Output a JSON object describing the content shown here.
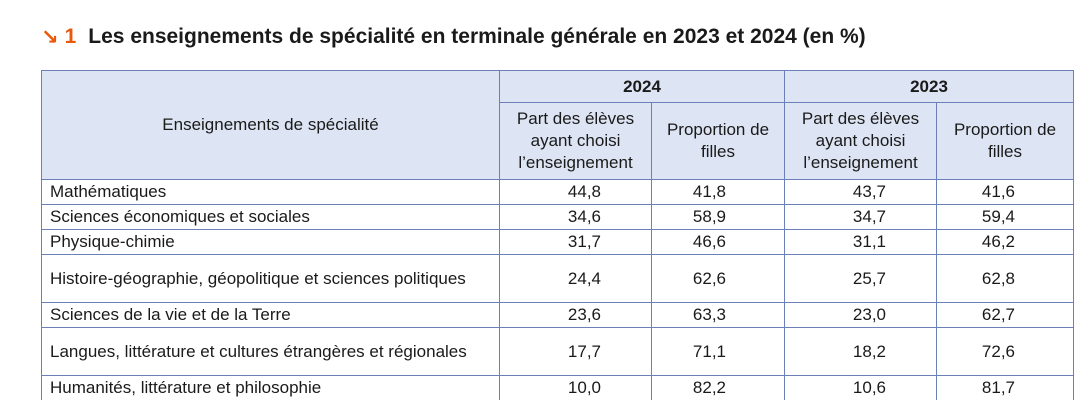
{
  "title": {
    "arrow": "↘",
    "number": "1",
    "text": "Les enseignements de spécialité en terminale générale en 2023 et 2024 (en %)"
  },
  "table": {
    "row_header": "Enseignements de spécialité",
    "years": [
      "2024",
      "2023"
    ],
    "subheaders": {
      "share": "Part des élèves ayant choisi l’enseignement",
      "girls": "Proportion de filles"
    },
    "rows": [
      {
        "name": "Mathématiques",
        "v2024_share": "44,8",
        "v2024_girls": "41,8",
        "v2023_share": "43,7",
        "v2023_girls": "41,6"
      },
      {
        "name": "Sciences économiques et sociales",
        "v2024_share": "34,6",
        "v2024_girls": "58,9",
        "v2023_share": "34,7",
        "v2023_girls": "59,4"
      },
      {
        "name": "Physique-chimie",
        "v2024_share": "31,7",
        "v2024_girls": "46,6",
        "v2023_share": "31,1",
        "v2023_girls": "46,2"
      },
      {
        "name": "Histoire-géographie, géopolitique et sciences politiques",
        "v2024_share": "24,4",
        "v2024_girls": "62,6",
        "v2023_share": "25,7",
        "v2023_girls": "62,8"
      },
      {
        "name": "Sciences de la vie et de la Terre",
        "v2024_share": "23,6",
        "v2024_girls": "63,3",
        "v2023_share": "23,0",
        "v2023_girls": "62,7"
      },
      {
        "name": "Langues, littérature et cultures étrangères et régionales",
        "v2024_share": "17,7",
        "v2024_girls": "71,1",
        "v2023_share": "18,2",
        "v2023_girls": "72,6"
      },
      {
        "name": "Humanités, littérature et philosophie",
        "v2024_share": "10,0",
        "v2024_girls": "82,2",
        "v2023_share": "10,6",
        "v2023_girls": "81,7"
      }
    ]
  },
  "colors": {
    "accent": "#e8590c",
    "header_bg": "#dde4f3",
    "border": "#6b7fb8"
  }
}
